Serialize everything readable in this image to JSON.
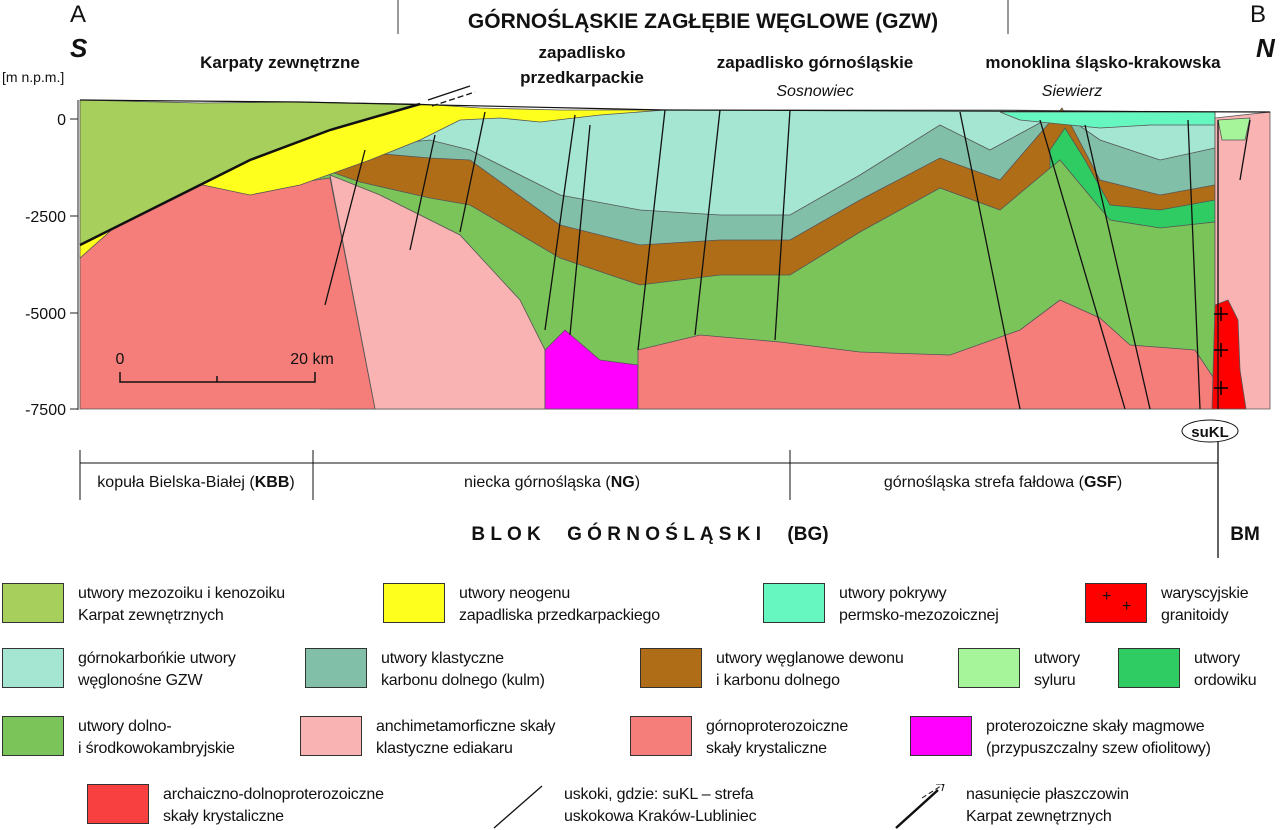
{
  "header": {
    "point_a": "A",
    "point_b": "B",
    "south": "S",
    "north": "N",
    "title": "GÓRNOŚLĄSKIE ZAGŁĘBIE WĘGLOWE (GZW)"
  },
  "regions": {
    "karpaty": "Karpaty zewnętrzne",
    "zap_przed_1": "zapadlisko",
    "zap_przed_2": "przedkarpackie",
    "zap_gorn": "zapadlisko górnośląskie",
    "sosnowiec": "Sosnowiec",
    "monoklina": "monoklina śląsko-krakowska",
    "siewierz": "Siewierz"
  },
  "axis": {
    "unit": "[m n.p.m.]",
    "ticks": [
      "0",
      "-2500",
      "-5000",
      "-7500"
    ]
  },
  "scale": {
    "start": "0",
    "end": "20 km"
  },
  "units": {
    "kbb_pre": "kopuła Bielska-Białej (",
    "kbb_b": "KBB",
    "kbb_post": ")",
    "ng_pre": "niecka  górnośląska (",
    "ng_b": "NG",
    "ng_post": ")",
    "gsf_pre": "górnośląska strefa fałdowa (",
    "gsf_b": "GSF",
    "gsf_post": ")",
    "sukl": "suKL",
    "blok": "B L O K     G Ó R N O Ś L Ą S K I     (BG)",
    "bm": "BM"
  },
  "colors": {
    "karpaty": "#a6cf5c",
    "neogen": "#ffff1e",
    "permo": "#66f7c0",
    "granit": "#ff0000",
    "gzw": "#a4e6d2",
    "kulm": "#82bfa8",
    "weglan": "#b06d17",
    "sylur": "#a6f59a",
    "ordowik": "#2ecc62",
    "kambr": "#7bc45a",
    "ediakar": "#f9b3b3",
    "gornoprot": "#f57d7a",
    "magmowe": "#ff00ff",
    "archaik": "#f94040"
  },
  "legend": [
    {
      "color": "#a6cf5c",
      "l1": "utwory mezozoiku i kenozoiku",
      "l2": "Karpat zewnętrznych"
    },
    {
      "color": "#ffff1e",
      "l1": "utwory neogenu",
      "l2": "zapadliska przedkarpackiego"
    },
    {
      "color": "#66f7c0",
      "l1": "utwory pokrywy",
      "l2": "permsko-mezozoicznej"
    },
    {
      "color": "#ff0000",
      "l1": "waryscyjskie",
      "l2": "granitoidy"
    },
    {
      "color": "#a4e6d2",
      "l1": "górnokarbońkie utwory",
      "l2": "węglonośne GZW"
    },
    {
      "color": "#82bfa8",
      "l1": "utwory klastyczne",
      "l2": "karbonu dolnego (kulm)"
    },
    {
      "color": "#b06d17",
      "l1": "utwory węglanowe dewonu",
      "l2": "i karbonu dolnego"
    },
    {
      "color": "#a6f59a",
      "l1": "utwory",
      "l2": "syluru"
    },
    {
      "color": "#2ecc62",
      "l1": "utwory",
      "l2": "ordowiku"
    },
    {
      "color": "#7bc45a",
      "l1": "utwory dolno-",
      "l2": "i środkowokambryjskie"
    },
    {
      "color": "#f9b3b3",
      "l1": "anchimetamorficzne skały",
      "l2": "klastyczne ediakaru"
    },
    {
      "color": "#f57d7a",
      "l1": "górnoproterozoiczne",
      "l2": "skały krystaliczne"
    },
    {
      "color": "#ff00ff",
      "l1": "proterozoiczne skały magmowe",
      "l2": "(przypuszczalny szew ofiolitowy)"
    },
    {
      "color": "#f94040",
      "l1": "archaiczno-dolnoproterozoiczne",
      "l2": "skały krystaliczne"
    },
    {
      "icon": "fault-line",
      "l1": "uskoki, gdzie: suKL – strefa",
      "l2": "uskokowa Kraków-Lubliniec"
    },
    {
      "icon": "thrust-line",
      "l1": "nasunięcie płaszczowin",
      "l2": "Karpat zewnętrznych"
    }
  ]
}
